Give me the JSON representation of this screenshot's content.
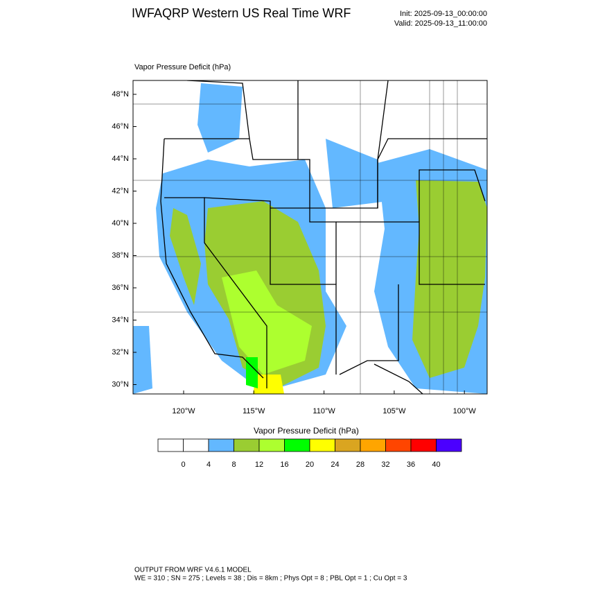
{
  "header": {
    "title": "IWFAQRP Western US Real Time WRF",
    "init": "Init: 2025-09-13_00:00:00",
    "valid": "Valid: 2025-09-13_11:00:00"
  },
  "map": {
    "subtitle": "Vapor Pressure Deficit   (hPa)",
    "lat_labels": [
      "48°N",
      "46°N",
      "44°N",
      "42°N",
      "40°N",
      "38°N",
      "36°N",
      "34°N",
      "32°N",
      "30°N"
    ],
    "lon_labels": [
      "120°W",
      "115°W",
      "110°W",
      "105°W",
      "100°W"
    ]
  },
  "colorbar": {
    "title": "Vapor Pressure Deficit  (hPa)",
    "colors": [
      "#ffffff",
      "#ffffff",
      "#63b8ff",
      "#9acd32",
      "#adff2f",
      "#00ff00",
      "#ffff00",
      "#daa520",
      "#ffa500",
      "#ff4500",
      "#ff0000",
      "#4b00ff"
    ],
    "levels": [
      0,
      4,
      8,
      12,
      16,
      20,
      24,
      28,
      32,
      36,
      40
    ]
  },
  "footer": {
    "line1": "OUTPUT FROM WRF V4.6.1 MODEL",
    "line2": "WE = 310 ; SN = 275 ; Levels = 38 ; Dis = 8km ; Phys Opt = 8 ; PBL Opt = 1 ; Cu Opt = 3"
  }
}
